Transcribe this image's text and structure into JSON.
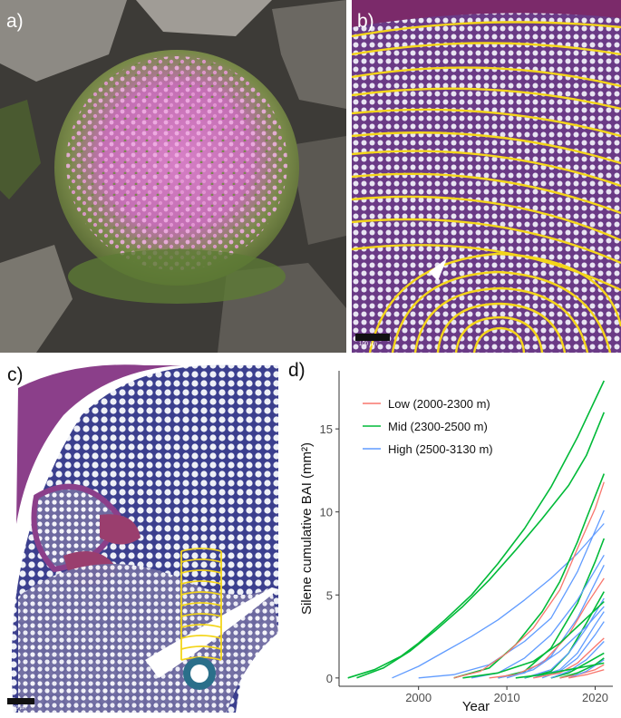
{
  "panels": {
    "a": {
      "label": "a)"
    },
    "b": {
      "label": "b)",
      "scalebar": "100 µm"
    },
    "c": {
      "label": "c)",
      "scalebar": "300 µm"
    },
    "d": {
      "label": "d)"
    }
  },
  "chart_data": {
    "type": "line",
    "xlabel": "Year",
    "ylabel": "Silene cumulative BAI (mm²)",
    "xlim": [
      1991,
      2022
    ],
    "ylim": [
      -0.5,
      18.5
    ],
    "x_ticks": [
      2000,
      2010,
      2020
    ],
    "y_ticks": [
      0,
      5,
      10,
      15
    ],
    "grid": false,
    "legend": {
      "position": "top-left",
      "entries": [
        {
          "name": "Low (2000-2300 m)",
          "color": "#F8766D"
        },
        {
          "name": "Mid (2300-2500 m)",
          "color": "#00BA38"
        },
        {
          "name": "High (2500-3130 m)",
          "color": "#619CFF"
        }
      ]
    },
    "series": [
      {
        "group": "Mid",
        "color": "#00BA38",
        "points": [
          [
            1992,
            0
          ],
          [
            1995,
            0.5
          ],
          [
            1998,
            1.3
          ],
          [
            2000,
            2.1
          ],
          [
            2003,
            3.5
          ],
          [
            2006,
            5.0
          ],
          [
            2009,
            6.9
          ],
          [
            2012,
            9.0
          ],
          [
            2015,
            11.5
          ],
          [
            2018,
            14.5
          ],
          [
            2021,
            17.9
          ]
        ]
      },
      {
        "group": "Mid",
        "color": "#00BA38",
        "points": [
          [
            1993,
            0
          ],
          [
            1996,
            0.6
          ],
          [
            1999,
            1.6
          ],
          [
            2002,
            2.9
          ],
          [
            2005,
            4.3
          ],
          [
            2008,
            5.9
          ],
          [
            2011,
            7.7
          ],
          [
            2014,
            9.6
          ],
          [
            2017,
            11.6
          ],
          [
            2019,
            13.4
          ],
          [
            2021,
            16.0
          ]
        ]
      },
      {
        "group": "High",
        "color": "#619CFF",
        "points": [
          [
            1997,
            0
          ],
          [
            2000,
            0.7
          ],
          [
            2003,
            1.6
          ],
          [
            2006,
            2.5
          ],
          [
            2009,
            3.5
          ],
          [
            2012,
            4.7
          ],
          [
            2015,
            6.0
          ],
          [
            2018,
            7.5
          ],
          [
            2021,
            9.3
          ]
        ]
      },
      {
        "group": "High",
        "color": "#619CFF",
        "points": [
          [
            2000,
            0
          ],
          [
            2004,
            0.2
          ],
          [
            2008,
            0.8
          ],
          [
            2012,
            2.2
          ],
          [
            2015,
            3.6
          ],
          [
            2018,
            6.4
          ],
          [
            2021,
            10.1
          ]
        ]
      },
      {
        "group": "Mid",
        "color": "#00BA38",
        "points": [
          [
            2004,
            0
          ],
          [
            2008,
            0.6
          ],
          [
            2011,
            2.0
          ],
          [
            2014,
            4.0
          ],
          [
            2016,
            5.8
          ],
          [
            2018,
            8.2
          ],
          [
            2019,
            9.6
          ],
          [
            2021,
            12.3
          ]
        ]
      },
      {
        "group": "Low",
        "color": "#F8766D",
        "points": [
          [
            2004,
            0
          ],
          [
            2007,
            0.4
          ],
          [
            2010,
            1.5
          ],
          [
            2013,
            3.0
          ],
          [
            2016,
            5.3
          ],
          [
            2018,
            7.8
          ],
          [
            2020,
            10.2
          ],
          [
            2021,
            11.8
          ]
        ]
      },
      {
        "group": "Mid",
        "color": "#00BA38",
        "points": [
          [
            2009,
            0
          ],
          [
            2012,
            0.4
          ],
          [
            2015,
            1.8
          ],
          [
            2018,
            4.5
          ],
          [
            2020,
            7.0
          ],
          [
            2021,
            8.4
          ]
        ]
      },
      {
        "group": "High",
        "color": "#619CFF",
        "points": [
          [
            2006,
            0
          ],
          [
            2009,
            0.3
          ],
          [
            2012,
            1.2
          ],
          [
            2015,
            2.6
          ],
          [
            2018,
            4.7
          ],
          [
            2021,
            7.4
          ]
        ]
      },
      {
        "group": "High",
        "color": "#619CFF",
        "points": [
          [
            2009,
            0
          ],
          [
            2012,
            0.3
          ],
          [
            2015,
            1.3
          ],
          [
            2018,
            3.6
          ],
          [
            2021,
            6.8
          ]
        ]
      },
      {
        "group": "Low",
        "color": "#F8766D",
        "points": [
          [
            2008,
            0
          ],
          [
            2011,
            0.2
          ],
          [
            2014,
            0.9
          ],
          [
            2017,
            2.6
          ],
          [
            2019,
            4.4
          ],
          [
            2021,
            6.0
          ]
        ]
      },
      {
        "group": "Mid",
        "color": "#00BA38",
        "points": [
          [
            2012,
            0
          ],
          [
            2015,
            0.4
          ],
          [
            2017,
            1.5
          ],
          [
            2019,
            3.3
          ],
          [
            2021,
            5.2
          ]
        ]
      },
      {
        "group": "High",
        "color": "#619CFF",
        "points": [
          [
            2012,
            0
          ],
          [
            2015,
            0.5
          ],
          [
            2017,
            1.5
          ],
          [
            2019,
            3.0
          ],
          [
            2021,
            4.8
          ]
        ]
      },
      {
        "group": "High",
        "color": "#619CFF",
        "points": [
          [
            2013,
            0
          ],
          [
            2016,
            0.5
          ],
          [
            2018,
            1.5
          ],
          [
            2020,
            3.2
          ],
          [
            2021,
            4.0
          ]
        ]
      },
      {
        "group": "High",
        "color": "#619CFF",
        "points": [
          [
            2014,
            0
          ],
          [
            2016,
            0.4
          ],
          [
            2018,
            1.2
          ],
          [
            2020,
            2.6
          ],
          [
            2021,
            3.4
          ]
        ]
      },
      {
        "group": "Low",
        "color": "#F8766D",
        "points": [
          [
            2013,
            0
          ],
          [
            2016,
            0.3
          ],
          [
            2018,
            0.9
          ],
          [
            2020,
            1.9
          ],
          [
            2021,
            2.4
          ]
        ]
      },
      {
        "group": "Mid",
        "color": "#00BA38",
        "points": [
          [
            2015,
            0
          ],
          [
            2017,
            0.3
          ],
          [
            2019,
            0.9
          ],
          [
            2021,
            1.5
          ]
        ]
      },
      {
        "group": "High",
        "color": "#619CFF",
        "points": [
          [
            2015,
            0
          ],
          [
            2017,
            0.4
          ],
          [
            2019,
            1.1
          ],
          [
            2021,
            2.2
          ]
        ]
      },
      {
        "group": "Mid",
        "color": "#00BA38",
        "points": [
          [
            2016,
            0
          ],
          [
            2018,
            0.3
          ],
          [
            2020,
            0.8
          ],
          [
            2021,
            1.2
          ]
        ]
      },
      {
        "group": "Low",
        "color": "#F8766D",
        "points": [
          [
            2016,
            0
          ],
          [
            2018,
            0.2
          ],
          [
            2020,
            0.5
          ],
          [
            2021,
            0.8
          ]
        ]
      },
      {
        "group": "Mid",
        "color": "#00BA38",
        "points": [
          [
            2005,
            0
          ],
          [
            2009,
            0.3
          ],
          [
            2013,
            1.0
          ],
          [
            2016,
            2.1
          ],
          [
            2019,
            3.6
          ],
          [
            2021,
            4.6
          ]
        ]
      },
      {
        "group": "High",
        "color": "#619CFF",
        "points": [
          [
            2017,
            0
          ],
          [
            2019,
            0.4
          ],
          [
            2021,
            1.1
          ]
        ]
      },
      {
        "group": "Low",
        "color": "#F8766D",
        "points": [
          [
            2017,
            0
          ],
          [
            2019,
            0.2
          ],
          [
            2021,
            0.5
          ]
        ]
      },
      {
        "group": "Mid",
        "color": "#00BA38",
        "points": [
          [
            2011,
            0
          ],
          [
            2014,
            0.2
          ],
          [
            2017,
            0.5
          ],
          [
            2021,
            0.9
          ]
        ]
      },
      {
        "group": "High",
        "color": "#619CFF",
        "points": [
          [
            2010,
            0
          ],
          [
            2013,
            0.5
          ],
          [
            2016,
            1.6
          ],
          [
            2019,
            3.1
          ],
          [
            2021,
            4.3
          ]
        ]
      }
    ]
  }
}
